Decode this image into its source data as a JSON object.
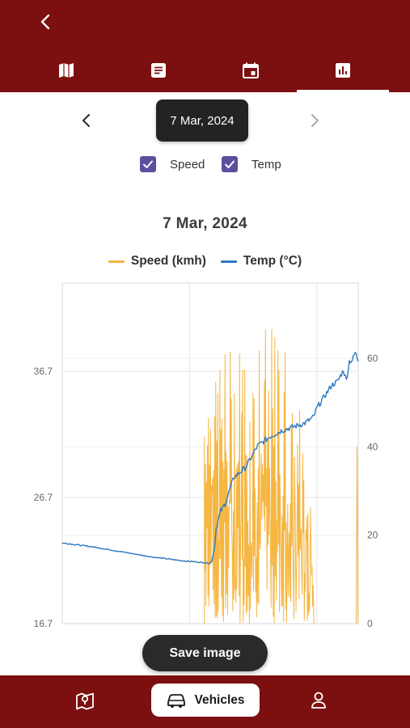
{
  "header": {
    "tabs": [
      {
        "icon": "map-icon"
      },
      {
        "icon": "article-icon"
      },
      {
        "icon": "calendar-icon"
      },
      {
        "icon": "bar-chart-icon",
        "active": true
      }
    ]
  },
  "date_nav": {
    "selected_date": "7 Mar, 2024"
  },
  "filters": {
    "speed_label": "Speed",
    "speed_checked": true,
    "temp_label": "Temp",
    "temp_checked": true
  },
  "colors": {
    "brand": "#7c0f0f",
    "checkbox": "#5e4f9e",
    "speed": "#f5b642",
    "temp": "#2e78c2"
  },
  "chart_data": {
    "type": "line",
    "title": "7 Mar, 2024",
    "legend": [
      "Speed (kmh)",
      "Temp (°C)"
    ],
    "left_axis": {
      "ticks": [
        "16.7",
        "26.7",
        "36.7"
      ],
      "range": [
        16.7,
        43.7
      ]
    },
    "right_axis": {
      "ticks": [
        "0",
        "20",
        "40",
        "60"
      ],
      "range": [
        0,
        77
      ]
    },
    "x_range": [
      0,
      100
    ],
    "temp_series": {
      "name": "Temp (°C)",
      "x": [
        0,
        10,
        20,
        30,
        40,
        45,
        49.5,
        50.5,
        51.5,
        52,
        53.5,
        55,
        58,
        62,
        66,
        70,
        74,
        78,
        82,
        85,
        86,
        88,
        91,
        93,
        95,
        96,
        97,
        98,
        99,
        100
      ],
      "y": [
        23.1,
        22.8,
        22.4,
        22.0,
        21.7,
        21.6,
        21.5,
        21.6,
        22.8,
        24.3,
        25.6,
        26.2,
        28.3,
        29.1,
        30.8,
        31.5,
        32.0,
        32.3,
        32.6,
        33.1,
        33.8,
        34.5,
        35.6,
        35.9,
        36.8,
        36.0,
        37.5,
        37.6,
        38.2,
        37.5
      ]
    },
    "speed_series": {
      "name": "Speed (kmh)",
      "range": [
        48,
        85
      ],
      "max_kmh": 67
    },
    "grid": true
  },
  "actions": {
    "save_label": "Save image"
  },
  "bottom_nav": {
    "vehicles_label": "Vehicles"
  }
}
